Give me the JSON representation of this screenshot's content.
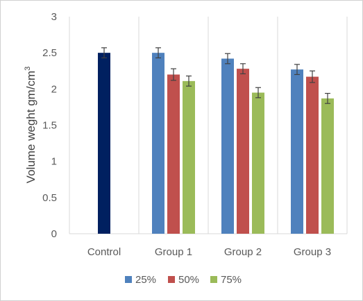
{
  "chart_data": {
    "type": "bar",
    "title": "",
    "xlabel": "",
    "ylabel": "Volume weght gm/cm",
    "ylabel_sup": "3",
    "ylim": [
      0,
      3
    ],
    "yticks": [
      "0",
      "0.5",
      "1",
      "1.5",
      "2",
      "2.5",
      "3"
    ],
    "categories": [
      "Control",
      "Group 1",
      "Group 2",
      "Group 3"
    ],
    "control": {
      "value": 2.5,
      "error": 0.07,
      "color": "#002060"
    },
    "series": [
      {
        "name": "25%",
        "color": "#4f81bd",
        "values": [
          null,
          2.5,
          2.42,
          2.27
        ],
        "errors": [
          null,
          0.07,
          0.07,
          0.07
        ]
      },
      {
        "name": "50%",
        "color": "#c0504d",
        "values": [
          null,
          2.2,
          2.28,
          2.17
        ],
        "errors": [
          null,
          0.08,
          0.07,
          0.08
        ]
      },
      {
        "name": "75%",
        "color": "#9bbb59",
        "values": [
          null,
          2.11,
          1.95,
          1.87
        ],
        "errors": [
          null,
          0.07,
          0.07,
          0.07
        ]
      }
    ],
    "grid": "vertical category separators",
    "legend": "bottom"
  }
}
